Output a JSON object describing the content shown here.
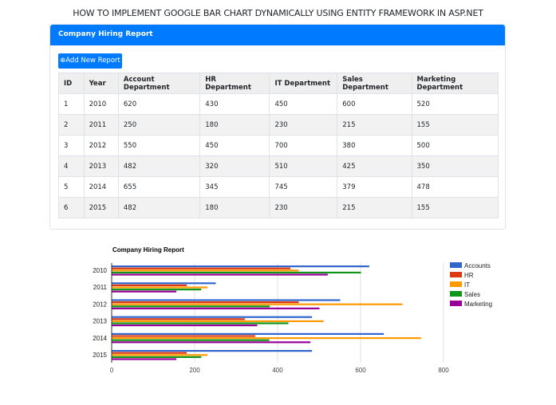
{
  "page_title": "HOW TO IMPLEMENT GOOGLE BAR CHART DYNAMICALLY USING ENTITY FRAMEWORK IN ASP.NET",
  "card": {
    "header": "Company Hiring Report",
    "add_button": "Add New Report"
  },
  "table": {
    "headers": [
      "ID",
      "Year",
      "Account Department",
      "HR Department",
      "IT Department",
      "Sales Department",
      "Marketing Department"
    ],
    "rows": [
      [
        "1",
        "2010",
        "620",
        "430",
        "450",
        "600",
        "520"
      ],
      [
        "2",
        "2011",
        "250",
        "180",
        "230",
        "215",
        "155"
      ],
      [
        "3",
        "2012",
        "550",
        "450",
        "700",
        "380",
        "500"
      ],
      [
        "4",
        "2013",
        "482",
        "320",
        "510",
        "425",
        "350"
      ],
      [
        "5",
        "2014",
        "655",
        "345",
        "745",
        "379",
        "478"
      ],
      [
        "6",
        "2015",
        "482",
        "180",
        "230",
        "215",
        "155"
      ]
    ]
  },
  "chart_data": {
    "type": "bar",
    "orientation": "horizontal",
    "title": "Company Hiring Report",
    "categories": [
      "2010",
      "2011",
      "2012",
      "2013",
      "2014",
      "2015"
    ],
    "series": [
      {
        "name": "Accounts",
        "color": "#3366cc",
        "values": [
          620,
          250,
          550,
          482,
          655,
          482
        ]
      },
      {
        "name": "HR",
        "color": "#dc3912",
        "values": [
          430,
          180,
          450,
          320,
          345,
          180
        ]
      },
      {
        "name": "IT",
        "color": "#ff9900",
        "values": [
          450,
          230,
          700,
          510,
          745,
          230
        ]
      },
      {
        "name": "Sales",
        "color": "#109618",
        "values": [
          600,
          215,
          380,
          425,
          379,
          215
        ]
      },
      {
        "name": "Marketing",
        "color": "#990099",
        "values": [
          520,
          155,
          500,
          350,
          478,
          155
        ]
      }
    ],
    "xticks": [
      0,
      200,
      400,
      600,
      800
    ],
    "xlim": [
      0,
      800
    ],
    "grid": true,
    "legend": "right"
  }
}
